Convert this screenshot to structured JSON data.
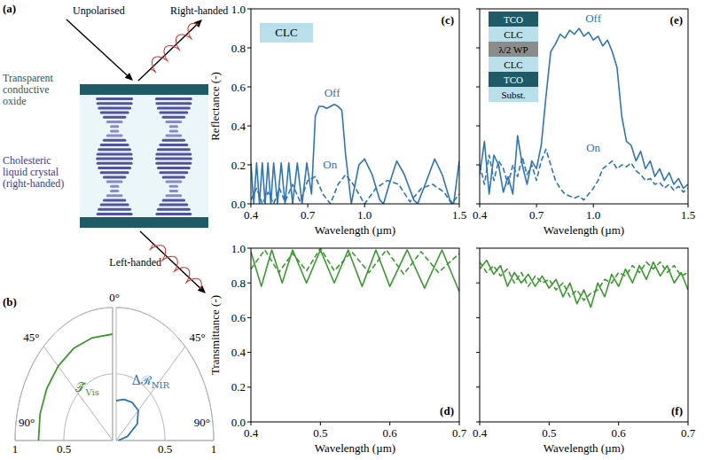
{
  "diagram": {
    "panel_label": "(a)",
    "labels": {
      "incident": "Unpolarised",
      "reflected": "Right-handed",
      "electrode": "Transparent conductive oxide",
      "layer": "Cholesteric liquid crystal (right-handed)",
      "transmitted": "Left-handed"
    }
  },
  "chart_data": [
    {
      "type": "line",
      "panel_label": "(c)",
      "x_label": "Wavelength (µm)",
      "y_label": "Reflectance (-)",
      "xlim": [
        0.4,
        1.5
      ],
      "ylim": [
        0,
        1
      ],
      "xticks": [
        0.4,
        0.7,
        {
          "value": 1,
          "label": "1.0"
        },
        1.5
      ],
      "yticks": [
        {
          "value": 0,
          "label": "0.0"
        },
        0.2,
        0.4,
        0.6,
        0.8,
        {
          "value": 1,
          "label": "1.0"
        }
      ],
      "inset": [
        {
          "label": "CLC",
          "color": "#b9dfea"
        }
      ],
      "series": [
        {
          "name": "Off",
          "color": "#2e75b6",
          "line_style": "solid",
          "x": [
            0.4,
            0.415,
            0.43,
            0.445,
            0.46,
            0.475,
            0.49,
            0.505,
            0.52,
            0.54,
            0.56,
            0.58,
            0.6,
            0.62,
            0.645,
            0.67,
            0.695,
            0.72,
            0.74,
            0.76,
            0.78,
            0.8,
            0.82,
            0.84,
            0.86,
            0.88,
            0.9,
            0.93,
            0.97,
            1.0,
            1.04,
            1.08,
            1.1,
            1.13,
            1.17,
            1.21,
            1.26,
            1.28,
            1.32,
            1.37,
            1.41,
            1.45,
            1.47,
            1.5
          ],
          "values": [
            0.21,
            0,
            0.21,
            0,
            0.21,
            0,
            0.21,
            0,
            0.21,
            0,
            0.21,
            0,
            0.21,
            0,
            0.21,
            0,
            0.21,
            0.05,
            0.45,
            0.5,
            0.5,
            0.49,
            0.5,
            0.51,
            0.5,
            0.48,
            0.25,
            0,
            0.2,
            0.23,
            0.15,
            0.02,
            0,
            0.1,
            0.22,
            0.15,
            0.02,
            0,
            0.1,
            0.23,
            0.15,
            0.02,
            0,
            0.22
          ]
        },
        {
          "name": "On",
          "color": "#2e75b6",
          "line_style": "dashed",
          "x": [
            0.4,
            0.43,
            0.46,
            0.49,
            0.52,
            0.55,
            0.58,
            0.62,
            0.66,
            0.7,
            0.74,
            0.78,
            0.82,
            0.86,
            0.9,
            0.94,
            1.0,
            1.06,
            1.12,
            1.18,
            1.24,
            1.3,
            1.36,
            1.42,
            1.46,
            1.5
          ],
          "values": [
            0.02,
            0.08,
            0,
            0.06,
            0,
            0.08,
            0.01,
            0.1,
            0.01,
            0.12,
            0.14,
            0.05,
            0,
            0.1,
            0.15,
            0.1,
            0,
            0.08,
            0.12,
            0.1,
            0.01,
            0.08,
            0.1,
            0.06,
            0,
            0.05
          ]
        }
      ]
    },
    {
      "type": "line",
      "panel_label": "(e)",
      "x_label": "Wavelength (µm)",
      "xlim": [
        0.4,
        1.5
      ],
      "ylim": [
        0,
        1
      ],
      "tick_labels": "x",
      "xticks": [
        0.4,
        0.7,
        {
          "value": 1,
          "label": "1.0"
        },
        1.5
      ],
      "yticks": [
        {
          "value": 0,
          "label": "0.0"
        },
        0.2,
        0.4,
        0.6,
        0.8,
        {
          "value": 1,
          "label": "1.0"
        }
      ],
      "inset": [
        {
          "label": "TCO",
          "color": "#1e5b66"
        },
        {
          "label": "CLC",
          "color": "#b9dfea"
        },
        {
          "label": "λ/2 WP",
          "color": "#8c8c8c"
        },
        {
          "label": "CLC",
          "color": "#b9dfea"
        },
        {
          "label": "TCO",
          "color": "#1e5b66"
        },
        {
          "label": "Subst.",
          "color": "#b9dfea"
        }
      ],
      "series": [
        {
          "name": "Off",
          "color": "#2e75b6",
          "line_style": "solid",
          "x": [
            0.4,
            0.425,
            0.45,
            0.475,
            0.5,
            0.525,
            0.55,
            0.575,
            0.6,
            0.625,
            0.65,
            0.675,
            0.7,
            0.725,
            0.75,
            0.775,
            0.8,
            0.825,
            0.85,
            0.875,
            0.9,
            0.925,
            0.95,
            0.975,
            1.0,
            1.025,
            1.05,
            1.075,
            1.1,
            1.125,
            1.15,
            1.175,
            1.2,
            1.225,
            1.25,
            1.275,
            1.3,
            1.325,
            1.35,
            1.375,
            1.4,
            1.425,
            1.45,
            1.475,
            1.5
          ],
          "values": [
            0.15,
            0.32,
            0.05,
            0.25,
            0.2,
            0.06,
            0.14,
            0.05,
            0.35,
            0.2,
            0.1,
            0.22,
            0.18,
            0.3,
            0.55,
            0.78,
            0.82,
            0.87,
            0.85,
            0.89,
            0.87,
            0.9,
            0.86,
            0.88,
            0.84,
            0.86,
            0.81,
            0.84,
            0.78,
            0.7,
            0.45,
            0.32,
            0.3,
            0.22,
            0.27,
            0.18,
            0.22,
            0.14,
            0.18,
            0.12,
            0.16,
            0.1,
            0.13,
            0.08,
            0.1
          ]
        },
        {
          "name": "On",
          "color": "#2e75b6",
          "line_style": "dashed",
          "x": [
            0.4,
            0.425,
            0.45,
            0.475,
            0.5,
            0.525,
            0.55,
            0.575,
            0.6,
            0.625,
            0.65,
            0.675,
            0.7,
            0.725,
            0.75,
            0.775,
            0.8,
            0.825,
            0.85,
            0.875,
            0.9,
            0.925,
            0.95,
            0.975,
            1.0,
            1.025,
            1.05,
            1.075,
            1.1,
            1.125,
            1.15,
            1.175,
            1.2,
            1.225,
            1.25,
            1.275,
            1.3,
            1.325,
            1.35,
            1.375,
            1.4,
            1.425,
            1.45,
            1.475,
            1.5
          ],
          "values": [
            0.2,
            0.1,
            0.25,
            0.12,
            0.22,
            0.18,
            0.1,
            0.2,
            0.14,
            0.24,
            0.15,
            0.2,
            0.12,
            0.22,
            0.28,
            0.2,
            0.12,
            0.08,
            0.05,
            0.04,
            0.03,
            0.04,
            0.02,
            0.05,
            0.08,
            0.12,
            0.18,
            0.2,
            0.22,
            0.18,
            0.2,
            0.19,
            0.21,
            0.17,
            0.15,
            0.12,
            0.13,
            0.1,
            0.11,
            0.08,
            0.1,
            0.07,
            0.09,
            0.06,
            0.08
          ]
        }
      ]
    },
    {
      "type": "line",
      "panel_label": "(d)",
      "x_label": "Wavelength (µm)",
      "y_label": "Transmittance (-)",
      "xlim": [
        0.4,
        0.7
      ],
      "ylim": [
        0,
        1
      ],
      "xticks": [
        0.4,
        0.5,
        0.6,
        0.7
      ],
      "yticks": [
        {
          "value": 0,
          "label": "0.0"
        },
        0.2,
        0.4,
        0.6,
        0.8,
        {
          "value": 1,
          "label": "1.0"
        }
      ],
      "series": [
        {
          "color": "#3a9a2e",
          "line_style": "solid",
          "x": [
            0.4,
            0.415,
            0.43,
            0.445,
            0.46,
            0.48,
            0.5,
            0.52,
            0.54,
            0.56,
            0.58,
            0.6,
            0.625,
            0.65,
            0.675,
            0.7
          ],
          "values": [
            0.98,
            0.78,
            0.99,
            0.8,
            0.99,
            0.8,
            0.99,
            0.8,
            0.99,
            0.78,
            0.99,
            0.78,
            0.99,
            0.77,
            0.99,
            0.75
          ]
        },
        {
          "color": "#3a9a2e",
          "line_style": "dashed",
          "x": [
            0.4,
            0.42,
            0.44,
            0.46,
            0.48,
            0.5,
            0.52,
            0.545,
            0.57,
            0.595,
            0.62,
            0.645,
            0.67,
            0.7
          ],
          "values": [
            0.88,
            0.99,
            0.86,
            0.97,
            0.87,
            1.0,
            0.87,
            0.98,
            0.86,
            0.99,
            0.85,
            0.98,
            0.86,
            0.97
          ]
        }
      ]
    },
    {
      "type": "line",
      "panel_label": "(f)",
      "x_label": "Wavelength (µm)",
      "xlim": [
        0.4,
        0.7
      ],
      "ylim": [
        0,
        1
      ],
      "tick_labels": "x",
      "xticks": [
        0.4,
        0.5,
        0.6,
        0.7
      ],
      "yticks": [
        {
          "value": 0,
          "label": "0.0"
        },
        0.2,
        0.4,
        0.6,
        0.8,
        {
          "value": 1,
          "label": "1.0"
        }
      ],
      "series": [
        {
          "color": "#3a9a2e",
          "line_style": "solid",
          "x": [
            0.4,
            0.41,
            0.42,
            0.43,
            0.44,
            0.45,
            0.46,
            0.47,
            0.48,
            0.49,
            0.5,
            0.51,
            0.52,
            0.53,
            0.54,
            0.55,
            0.56,
            0.57,
            0.58,
            0.59,
            0.6,
            0.61,
            0.62,
            0.63,
            0.64,
            0.65,
            0.66,
            0.67,
            0.68,
            0.69,
            0.7
          ],
          "values": [
            0.88,
            0.93,
            0.85,
            0.9,
            0.78,
            0.86,
            0.8,
            0.85,
            0.78,
            0.84,
            0.77,
            0.82,
            0.72,
            0.8,
            0.68,
            0.76,
            0.66,
            0.8,
            0.72,
            0.85,
            0.78,
            0.88,
            0.8,
            0.9,
            0.82,
            0.92,
            0.84,
            0.9,
            0.8,
            0.86,
            0.76
          ]
        },
        {
          "color": "#3a9a2e",
          "line_style": "dashed",
          "x": [
            0.4,
            0.41,
            0.42,
            0.43,
            0.44,
            0.45,
            0.46,
            0.47,
            0.48,
            0.49,
            0.5,
            0.51,
            0.52,
            0.53,
            0.54,
            0.55,
            0.56,
            0.57,
            0.58,
            0.59,
            0.6,
            0.61,
            0.62,
            0.63,
            0.64,
            0.65,
            0.66,
            0.67,
            0.68,
            0.69,
            0.7
          ],
          "values": [
            0.92,
            0.86,
            0.9,
            0.84,
            0.88,
            0.8,
            0.86,
            0.78,
            0.84,
            0.8,
            0.82,
            0.76,
            0.8,
            0.72,
            0.76,
            0.7,
            0.74,
            0.76,
            0.82,
            0.8,
            0.86,
            0.84,
            0.9,
            0.86,
            0.92,
            0.88,
            0.92,
            0.86,
            0.9,
            0.84,
            0.86
          ]
        }
      ]
    },
    {
      "type": "polar",
      "panel_label": "(b)",
      "thetalim": [
        0,
        90
      ],
      "rlim": [
        0,
        1
      ],
      "thetaticks": [
        {
          "value": 0,
          "label": "0°"
        },
        {
          "value": 45,
          "label": "45°"
        },
        {
          "value": 90,
          "label": "90°"
        }
      ],
      "rticks": [
        0.5,
        1
      ],
      "series": [
        {
          "name": "𝒯̄",
          "name_subscript": "Vis",
          "color": "#3a9a2e",
          "theta": [
            0,
            15,
            30,
            45,
            60,
            75,
            90
          ],
          "values": [
            0.8,
            0.8,
            0.8,
            0.79,
            0.78,
            0.77,
            0.76
          ]
        }
      ]
    },
    {
      "type": "polar",
      "thetalim": [
        0,
        90
      ],
      "rlim": [
        0,
        1
      ],
      "thetaticks": [
        {
          "value": 45,
          "label": "45°"
        },
        {
          "value": 90,
          "label": "90°"
        }
      ],
      "rticks": [
        0.5,
        1
      ],
      "series": [
        {
          "name": "Δℛ",
          "name_subscript": "NIR",
          "color": "#2e75b6",
          "theta": [
            0,
            15,
            30,
            45,
            60,
            75,
            90
          ],
          "values": [
            0.3,
            0.32,
            0.33,
            0.32,
            0.25,
            0.12,
            0.02
          ]
        }
      ]
    }
  ]
}
